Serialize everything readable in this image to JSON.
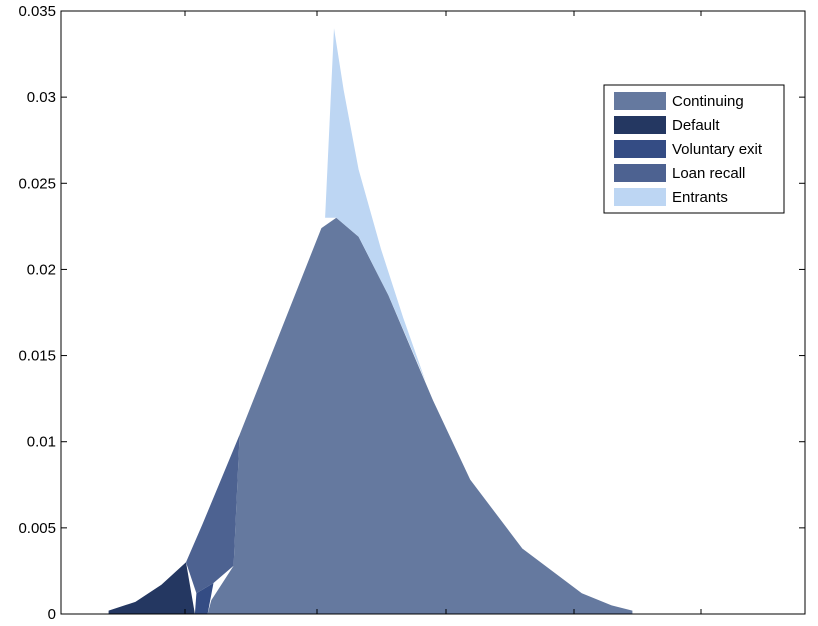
{
  "chart_data": {
    "type": "area",
    "title": "",
    "xlabel": "",
    "ylabel": "",
    "ylim": [
      0,
      0.035
    ],
    "y_ticks": [
      "0",
      "0.005",
      "0.01",
      "0.015",
      "0.02",
      "0.025",
      "0.03",
      "0.035"
    ],
    "grid": false,
    "legend_position": "top-right",
    "series": [
      {
        "name": "Continuing",
        "color": "#65799f",
        "points": [
          [
            0.197,
            0.0
          ],
          [
            0.202,
            0.0008
          ],
          [
            0.232,
            0.0028
          ],
          [
            0.24,
            0.0104
          ],
          [
            0.35,
            0.0224
          ],
          [
            0.37,
            0.023
          ],
          [
            0.4,
            0.0219
          ],
          [
            0.44,
            0.0185
          ],
          [
            0.5,
            0.0124
          ],
          [
            0.55,
            0.0078
          ],
          [
            0.62,
            0.0038
          ],
          [
            0.7,
            0.0012
          ],
          [
            0.74,
            0.0005
          ],
          [
            0.768,
            0.0002
          ],
          [
            0.768,
            0.0
          ]
        ]
      },
      {
        "name": "Default",
        "color": "#243761",
        "points": [
          [
            0.064,
            0.0
          ],
          [
            0.064,
            0.0002
          ],
          [
            0.1,
            0.0007
          ],
          [
            0.135,
            0.0017
          ],
          [
            0.168,
            0.003
          ],
          [
            0.18,
            0.0
          ],
          [
            0.064,
            0.0
          ]
        ]
      },
      {
        "name": "Voluntary exit",
        "color": "#344c84",
        "points": [
          [
            0.18,
            0.0
          ],
          [
            0.182,
            0.0012
          ],
          [
            0.205,
            0.0018
          ],
          [
            0.197,
            0.0
          ],
          [
            0.18,
            0.0
          ]
        ]
      },
      {
        "name": "Loan recall",
        "color": "#4d6291",
        "points": [
          [
            0.168,
            0.003
          ],
          [
            0.19,
            0.0052
          ],
          [
            0.215,
            0.0078
          ],
          [
            0.24,
            0.0104
          ],
          [
            0.232,
            0.0028
          ],
          [
            0.205,
            0.0018
          ],
          [
            0.182,
            0.0012
          ],
          [
            0.168,
            0.003
          ]
        ]
      },
      {
        "name": "Entrants",
        "color": "#bdd6f3",
        "points": [
          [
            0.355,
            0.023
          ],
          [
            0.367,
            0.034
          ],
          [
            0.38,
            0.0304
          ],
          [
            0.4,
            0.0258
          ],
          [
            0.43,
            0.0212
          ],
          [
            0.46,
            0.0172
          ],
          [
            0.49,
            0.0135
          ],
          [
            0.44,
            0.0185
          ],
          [
            0.4,
            0.0219
          ],
          [
            0.37,
            0.023
          ],
          [
            0.355,
            0.023
          ]
        ]
      }
    ]
  }
}
